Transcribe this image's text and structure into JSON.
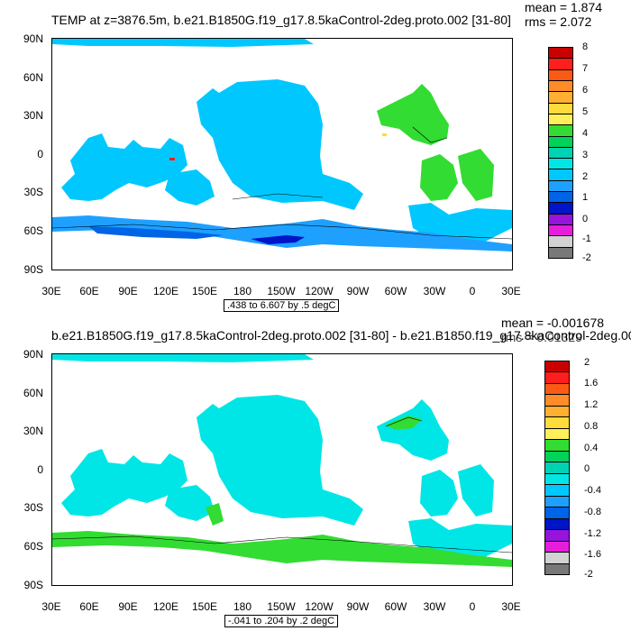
{
  "chart_data": [
    {
      "type": "heatmap",
      "title": "TEMP at z=3876.5m, b.e21.B1850G.f19_g17.8.5kaControl-2deg.proto.002 [31-80]",
      "mean_label": "mean = 1.874",
      "rms_label": "rms = 2.072",
      "range_label": ".438 to 6.607 by .5 degC",
      "y_ticks": [
        "90N",
        "60N",
        "30N",
        "0",
        "30S",
        "60S",
        "90S"
      ],
      "x_ticks": [
        "30E",
        "60E",
        "90E",
        "120E",
        "150E",
        "180",
        "150W",
        "120W",
        "90W",
        "60W",
        "30W",
        "0",
        "30E"
      ],
      "colorbar_labels": [
        "8",
        "7",
        "6",
        "5",
        "4",
        "3",
        "2",
        "1",
        "0",
        "-1",
        "-2"
      ],
      "colorbar_colors": [
        "#c80000",
        "#ff1e1e",
        "#fa5a14",
        "#ff8c28",
        "#ffaf32",
        "#ffdc3c",
        "#fff05a",
        "#32dc32",
        "#00d25a",
        "#00d2b4",
        "#00e6e6",
        "#00c8ff",
        "#1ea0ff",
        "#0064e6",
        "#0014c8",
        "#9614dc",
        "#e61edc",
        "#d2d2d2",
        "#787878"
      ],
      "dominant_values": {
        "atlantic_indian_ocean": "1 to 1.5",
        "pacific_ocean": "1 to 1.5",
        "southern_ocean": "0.5 to 1",
        "north_atlantic": "3.5 to 4",
        "tropical_atlantic": "3 to 3.5"
      }
    },
    {
      "type": "heatmap",
      "title": "b.e21.B1850G.f19_g17.8.5kaControl-2deg.proto.002 [31-80] - b.e21.B1850.f19_g17.8kaControl-2deg.00",
      "mean_label": "mean = -0.001678",
      "rms_label": "rms = 0.01329",
      "range_label": "-.041 to .204 by .2 degC",
      "y_ticks": [
        "90N",
        "60N",
        "30N",
        "0",
        "30S",
        "60S",
        "90S"
      ],
      "x_ticks": [
        "30E",
        "60E",
        "90E",
        "120E",
        "150E",
        "180",
        "150W",
        "120W",
        "90W",
        "60W",
        "30W",
        "0",
        "30E"
      ],
      "colorbar_labels": [
        "2",
        "1.6",
        "1.2",
        "0.8",
        "0.4",
        "0",
        "-0.4",
        "-0.8",
        "-1.2",
        "-1.6",
        "-2"
      ],
      "colorbar_colors": [
        "#c80000",
        "#ff1e1e",
        "#fa5a14",
        "#ff8c28",
        "#ffaf32",
        "#ffdc3c",
        "#fff05a",
        "#32dc32",
        "#00d25a",
        "#00d2b4",
        "#00e6e6",
        "#00c8ff",
        "#1ea0ff",
        "#0064e6",
        "#0014c8",
        "#9614dc",
        "#e61edc",
        "#d2d2d2",
        "#787878"
      ],
      "dominant_values": {
        "global_ocean": "0 to 0.2",
        "southern_ocean": "0.2 to 0.4"
      }
    }
  ]
}
